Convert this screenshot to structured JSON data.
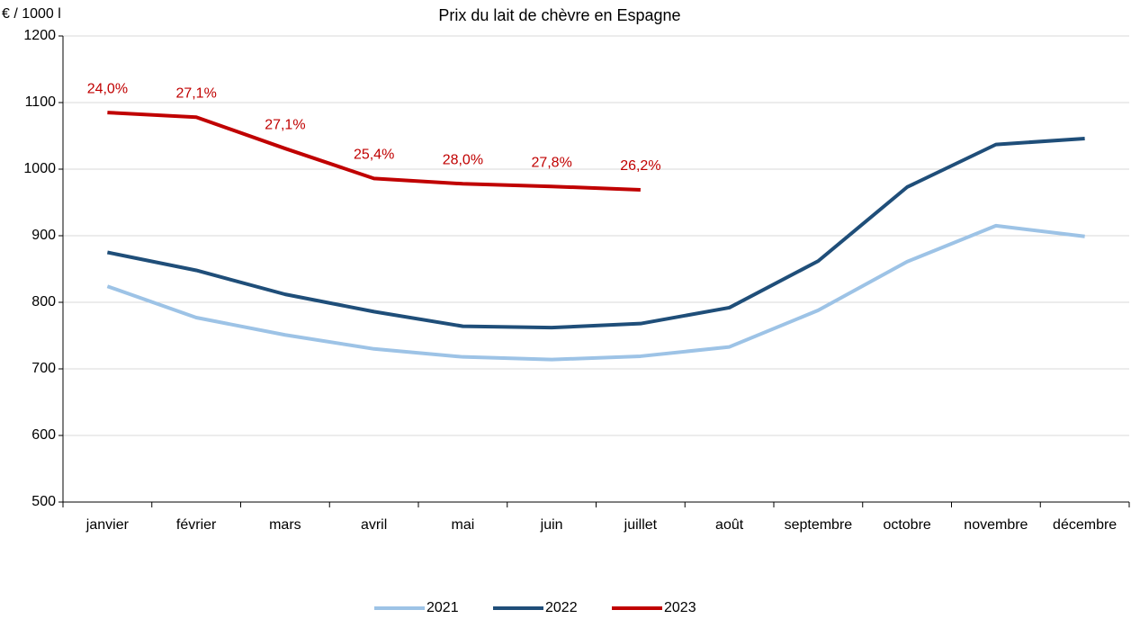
{
  "chart_data": {
    "type": "line",
    "title": "Prix du lait de chèvre en Espagne",
    "y_label": "€ / 1000 l",
    "categories": [
      "janvier",
      "février",
      "mars",
      "avril",
      "mai",
      "juin",
      "juillet",
      "août",
      "septembre",
      "octobre",
      "novembre",
      "décembre"
    ],
    "series": [
      {
        "name": "2021",
        "color": "#9dc3e6",
        "values": [
          824,
          777,
          751,
          730,
          718,
          714,
          719,
          733,
          788,
          861,
          915,
          899
        ]
      },
      {
        "name": "2022",
        "color": "#1f4e79",
        "values": [
          875,
          848,
          812,
          786,
          764,
          762,
          768,
          792,
          862,
          973,
          1037,
          1046
        ]
      },
      {
        "name": "2023",
        "color": "#c00000",
        "values": [
          1085,
          1078,
          1031,
          986,
          978,
          974,
          969,
          null,
          null,
          null,
          null,
          null
        ],
        "point_labels": [
          "24,0%",
          "27,1%",
          "27,1%",
          "25,4%",
          "28,0%",
          "27,8%",
          "26,2%",
          null,
          null,
          null,
          null,
          null
        ]
      }
    ],
    "ylim": [
      500,
      1200
    ],
    "yticks": [
      500,
      600,
      700,
      800,
      900,
      1000,
      1100,
      1200
    ],
    "grid": true,
    "legend": "bottom"
  }
}
